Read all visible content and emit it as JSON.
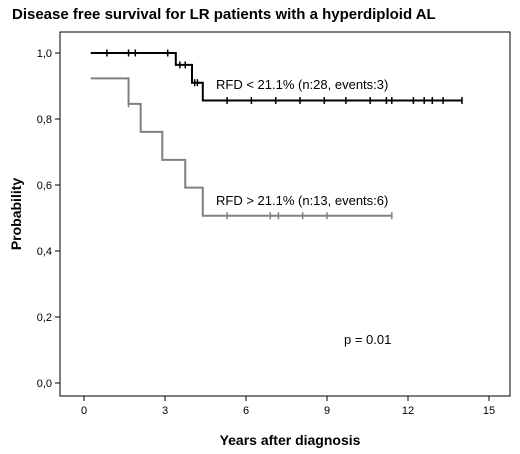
{
  "chart_data": {
    "type": "line",
    "subtype": "kaplan-meier",
    "title": "Disease free survival for LR patients with a hyperdiploid AL",
    "xlabel": "Years after diagnosis",
    "ylabel": "Probability",
    "xlim": [
      -0.7,
      16
    ],
    "ylim": [
      -0.05,
      1.06
    ],
    "x_ticks": [
      0,
      3,
      6,
      9,
      12,
      15
    ],
    "x_tick_labels": [
      "0",
      "3",
      "6",
      "9",
      "12",
      "15"
    ],
    "y_ticks": [
      0.0,
      0.2,
      0.4,
      0.6,
      0.8,
      1.0
    ],
    "y_tick_labels": [
      "0,0",
      "0,2",
      "0,4",
      "0,6",
      "0,8",
      "1,0"
    ],
    "grid": false,
    "annotation": "p = 0.01",
    "series": [
      {
        "name": "RFD < 21.1% (n:28, events:3)",
        "color": "#000000",
        "steps": [
          [
            0.25,
            1.0
          ],
          [
            3.4,
            0.964
          ],
          [
            4.0,
            0.91
          ],
          [
            4.4,
            0.856
          ],
          [
            14.0,
            0.856
          ]
        ],
        "censored": [
          [
            0.85,
            1.0
          ],
          [
            1.65,
            1.0
          ],
          [
            1.9,
            1.0
          ],
          [
            3.1,
            1.0
          ],
          [
            3.55,
            0.964
          ],
          [
            3.75,
            0.964
          ],
          [
            4.1,
            0.91
          ],
          [
            4.2,
            0.91
          ],
          [
            5.3,
            0.856
          ],
          [
            6.2,
            0.856
          ],
          [
            7.1,
            0.856
          ],
          [
            8.0,
            0.856
          ],
          [
            8.9,
            0.856
          ],
          [
            9.7,
            0.856
          ],
          [
            10.6,
            0.856
          ],
          [
            11.2,
            0.856
          ],
          [
            11.4,
            0.856
          ],
          [
            12.2,
            0.856
          ],
          [
            12.6,
            0.856
          ],
          [
            12.9,
            0.856
          ],
          [
            13.3,
            0.856
          ],
          [
            14.0,
            0.856
          ]
        ]
      },
      {
        "name": "RFD > 21.1% (n:13, events:6)",
        "color": "#808080",
        "steps": [
          [
            0.25,
            0.923
          ],
          [
            1.65,
            0.846
          ],
          [
            2.1,
            0.761
          ],
          [
            2.9,
            0.676
          ],
          [
            3.75,
            0.592
          ],
          [
            4.4,
            0.507
          ],
          [
            11.4,
            0.507
          ]
        ],
        "censored": [
          [
            1.65,
            0.846
          ],
          [
            5.3,
            0.507
          ],
          [
            6.9,
            0.507
          ],
          [
            7.2,
            0.507
          ],
          [
            8.1,
            0.507
          ],
          [
            9.0,
            0.507
          ],
          [
            11.4,
            0.507
          ]
        ]
      }
    ]
  }
}
